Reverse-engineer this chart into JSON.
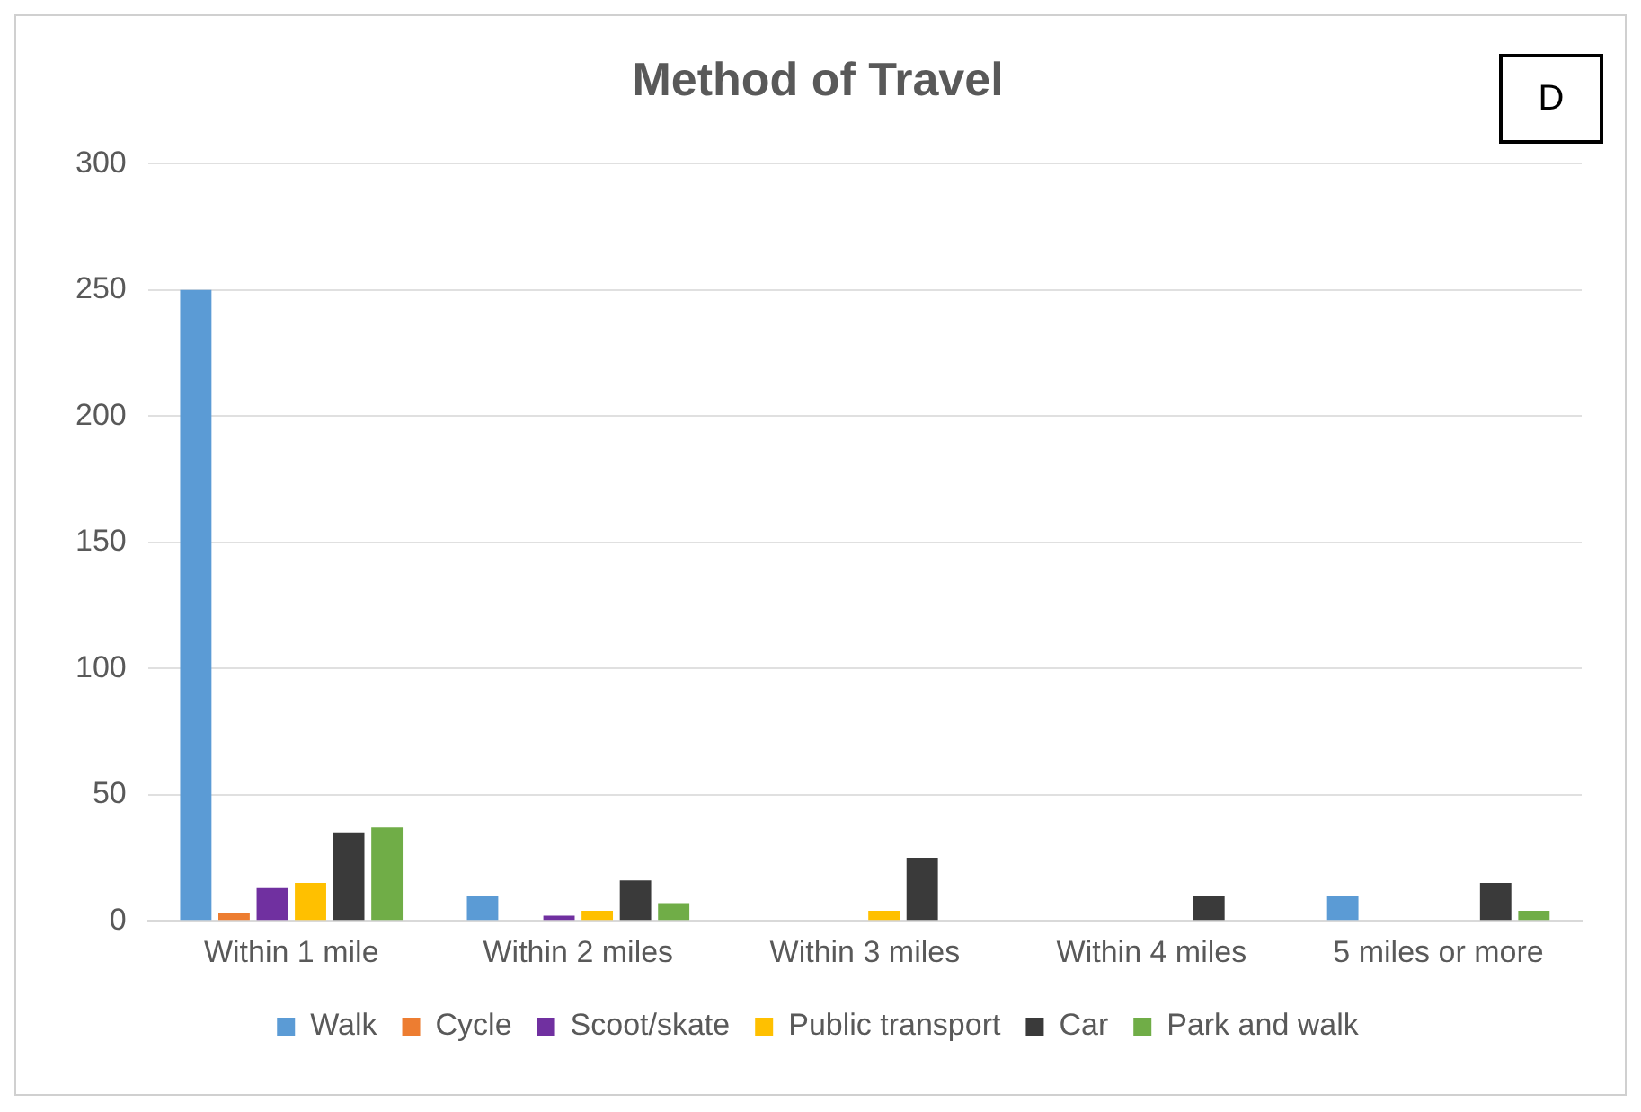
{
  "chart_data": {
    "type": "bar",
    "title": "Method of Travel",
    "annotations": [
      "D"
    ],
    "categories": [
      "Within 1 mile",
      "Within 2 miles",
      "Within 3 miles",
      "Within 4 miles",
      "5 miles or more"
    ],
    "series": [
      {
        "name": "Walk",
        "color": "#5b9bd5",
        "values": [
          250,
          10,
          0,
          0,
          10
        ]
      },
      {
        "name": "Cycle",
        "color": "#ed7d31",
        "values": [
          3,
          0,
          0,
          0,
          0
        ]
      },
      {
        "name": "Scoot/skate",
        "color": "#7030a0",
        "values": [
          13,
          2,
          0,
          0,
          0
        ]
      },
      {
        "name": "Public transport",
        "color": "#ffc000",
        "values": [
          15,
          4,
          4,
          0,
          0
        ]
      },
      {
        "name": "Car",
        "color": "#3a3a3a",
        "values": [
          35,
          16,
          25,
          10,
          15
        ]
      },
      {
        "name": "Park and walk",
        "color": "#70ad47",
        "values": [
          37,
          7,
          0,
          0,
          4
        ]
      }
    ],
    "ylim": [
      0,
      300
    ],
    "yticks": [
      0,
      50,
      100,
      150,
      200,
      250,
      300
    ],
    "grid": "y",
    "legend": "bottom"
  }
}
